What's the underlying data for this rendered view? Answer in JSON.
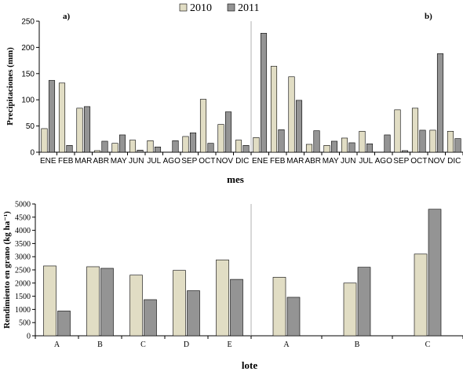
{
  "legend": [
    {
      "name": "2010",
      "color": "#e1ddc4"
    },
    {
      "name": "2011",
      "color": "#949494"
    }
  ],
  "colors": {
    "s2010": "#e1ddc4",
    "s2011": "#949494"
  },
  "chart_data": [
    {
      "type": "bar",
      "panel": "a)",
      "xlabel": "mes",
      "ylabel": "Precipitaciones (mm)",
      "ylim": [
        0,
        250
      ],
      "yticks": [
        0,
        50,
        100,
        150,
        200,
        250
      ],
      "categories": [
        "ENE",
        "FEB",
        "MAR",
        "ABR",
        "MAY",
        "JUN",
        "JUL",
        "AGO",
        "SEP",
        "OCT",
        "NOV",
        "DIC"
      ],
      "series": [
        {
          "name": "2010",
          "values": [
            45,
            132,
            84,
            3,
            17,
            23,
            22,
            0,
            30,
            101,
            53,
            23
          ]
        },
        {
          "name": "2011",
          "values": [
            137,
            13,
            87,
            21,
            33,
            4,
            10,
            22,
            37,
            17,
            77,
            13
          ]
        }
      ]
    },
    {
      "type": "bar",
      "panel": "b)",
      "xlabel": "mes",
      "ylim": [
        0,
        250
      ],
      "categories": [
        "ENE",
        "FEB",
        "MAR",
        "ABR",
        "MAY",
        "JUN",
        "JUL",
        "AGO",
        "SEP",
        "OCT",
        "NOV",
        "DIC"
      ],
      "series": [
        {
          "name": "2010",
          "values": [
            28,
            164,
            144,
            15,
            13,
            27,
            40,
            0,
            81,
            84,
            42,
            40
          ]
        },
        {
          "name": "2011",
          "values": [
            227,
            43,
            99,
            41,
            21,
            18,
            16,
            33,
            3,
            42,
            188,
            26
          ]
        }
      ]
    },
    {
      "type": "bar",
      "xlabel": "lote",
      "ylabel": "Rendimiento en grano (kg ha⁻¹)",
      "ylim": [
        0,
        5000
      ],
      "yticks": [
        0,
        500,
        1000,
        1500,
        2000,
        2500,
        3000,
        3500,
        4000,
        4500,
        5000
      ],
      "categories": [
        "A",
        "B",
        "C",
        "D",
        "E"
      ],
      "series": [
        {
          "name": "2010",
          "values": [
            2650,
            2620,
            2300,
            2480,
            2880
          ]
        },
        {
          "name": "2011",
          "values": [
            940,
            2560,
            1370,
            1710,
            2140
          ]
        }
      ]
    },
    {
      "type": "bar",
      "xlabel": "lote",
      "ylim": [
        0,
        5000
      ],
      "categories": [
        "A",
        "B",
        "C"
      ],
      "series": [
        {
          "name": "2010",
          "values": [
            2220,
            2000,
            3100
          ]
        },
        {
          "name": "2011",
          "values": [
            1460,
            2600,
            4800
          ]
        }
      ]
    }
  ]
}
